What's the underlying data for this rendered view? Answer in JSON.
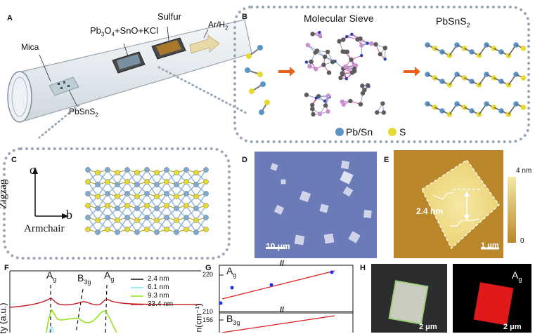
{
  "panels": {
    "a": {
      "label": "A",
      "mica": "Mica",
      "precursor": "Pb3O4+SnO+KCl",
      "sulfur": "Sulfur",
      "gas": "Ar/H2",
      "product": "PbSnS2"
    },
    "b": {
      "label": "B",
      "sieve": "Molecular Sieve",
      "product": "PbSnS2",
      "legend_pbsn": "Pb/Sn",
      "legend_s": "S"
    },
    "c": {
      "label": "C",
      "axis_c": "c",
      "axis_b": "b",
      "zigzag": "Zigzag",
      "armchair": "Armchair"
    },
    "d": {
      "label": "D",
      "scale": "10 μm"
    },
    "e": {
      "label": "E",
      "height": "2.4 nm",
      "scale": "1 μm",
      "cbar_max": "4 nm",
      "cbar_min": "0"
    },
    "f": {
      "label": "F",
      "ylabel": "ty (a.u.)",
      "peak1": "A",
      "peak1_sub": "g",
      "peak2": "B",
      "peak2_sub": "3g",
      "peak3": "A",
      "peak3_sub": "g",
      "legend": [
        "2.4 nm",
        "6.1 nm",
        "9.3 nm",
        "33.4 nm"
      ]
    },
    "g": {
      "label": "G",
      "ylabel": "n(cm⁻¹)",
      "top_mode": "A",
      "top_mode_sub": "g",
      "bot_mode": "B",
      "bot_mode_sub": "3g",
      "ticks": [
        "220",
        "210",
        "156"
      ],
      "break": "//"
    },
    "h": {
      "label": "H",
      "scale1": "2 μm",
      "scale2": "2 μm",
      "mode": "A",
      "mode_sub": "g"
    }
  },
  "colors": {
    "optical_bg": "#6b7bb8",
    "afm_dark": "#b9862a",
    "afm_light": "#f6e9a6",
    "raman_red": "#e01a1a",
    "f_black": "#111111",
    "f_cyan": "#7fe6ef",
    "f_green": "#93e51a",
    "f_red": "#c21d26",
    "arrow": "#e8621b"
  }
}
